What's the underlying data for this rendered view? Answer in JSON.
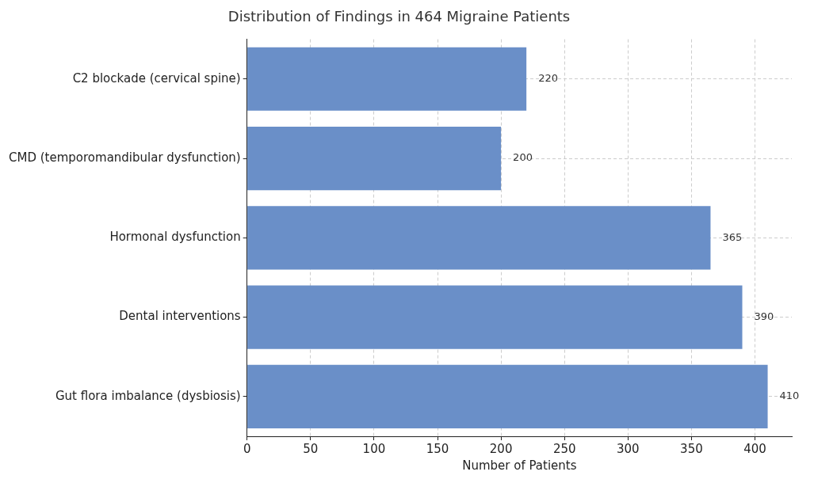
{
  "chart_data": {
    "type": "bar",
    "orientation": "horizontal",
    "title": "Distribution of Findings in 464 Migraine Patients",
    "xlabel": "Number of Patients",
    "categories": [
      "C2 blockade (cervical spine)",
      "CMD (temporomandibular dysfunction)",
      "Hormonal dysfunction",
      "Dental interventions",
      "Gut flora imbalance (dysbiosis)"
    ],
    "values": [
      220,
      200,
      365,
      390,
      410
    ],
    "color": "#6a8fc8",
    "xlim": [
      0,
      429
    ],
    "xticks": [
      0,
      50,
      100,
      150,
      200,
      250,
      300,
      350,
      400
    ],
    "grid": true,
    "data_labels": true
  }
}
